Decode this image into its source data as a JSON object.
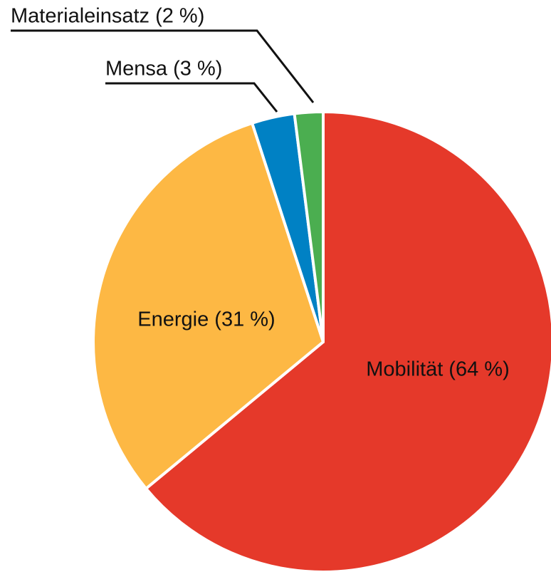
{
  "chart_data": {
    "type": "pie",
    "labels": [
      "Mobilität (64 %)",
      "Energie (31 %)",
      "Mensa (3 %)",
      "Materialeinsatz (2 %)"
    ],
    "values": [
      64,
      31,
      3,
      2
    ],
    "colors": [
      "#e5392a",
      "#fdb844",
      "#0081c4",
      "#4bae50"
    ]
  }
}
